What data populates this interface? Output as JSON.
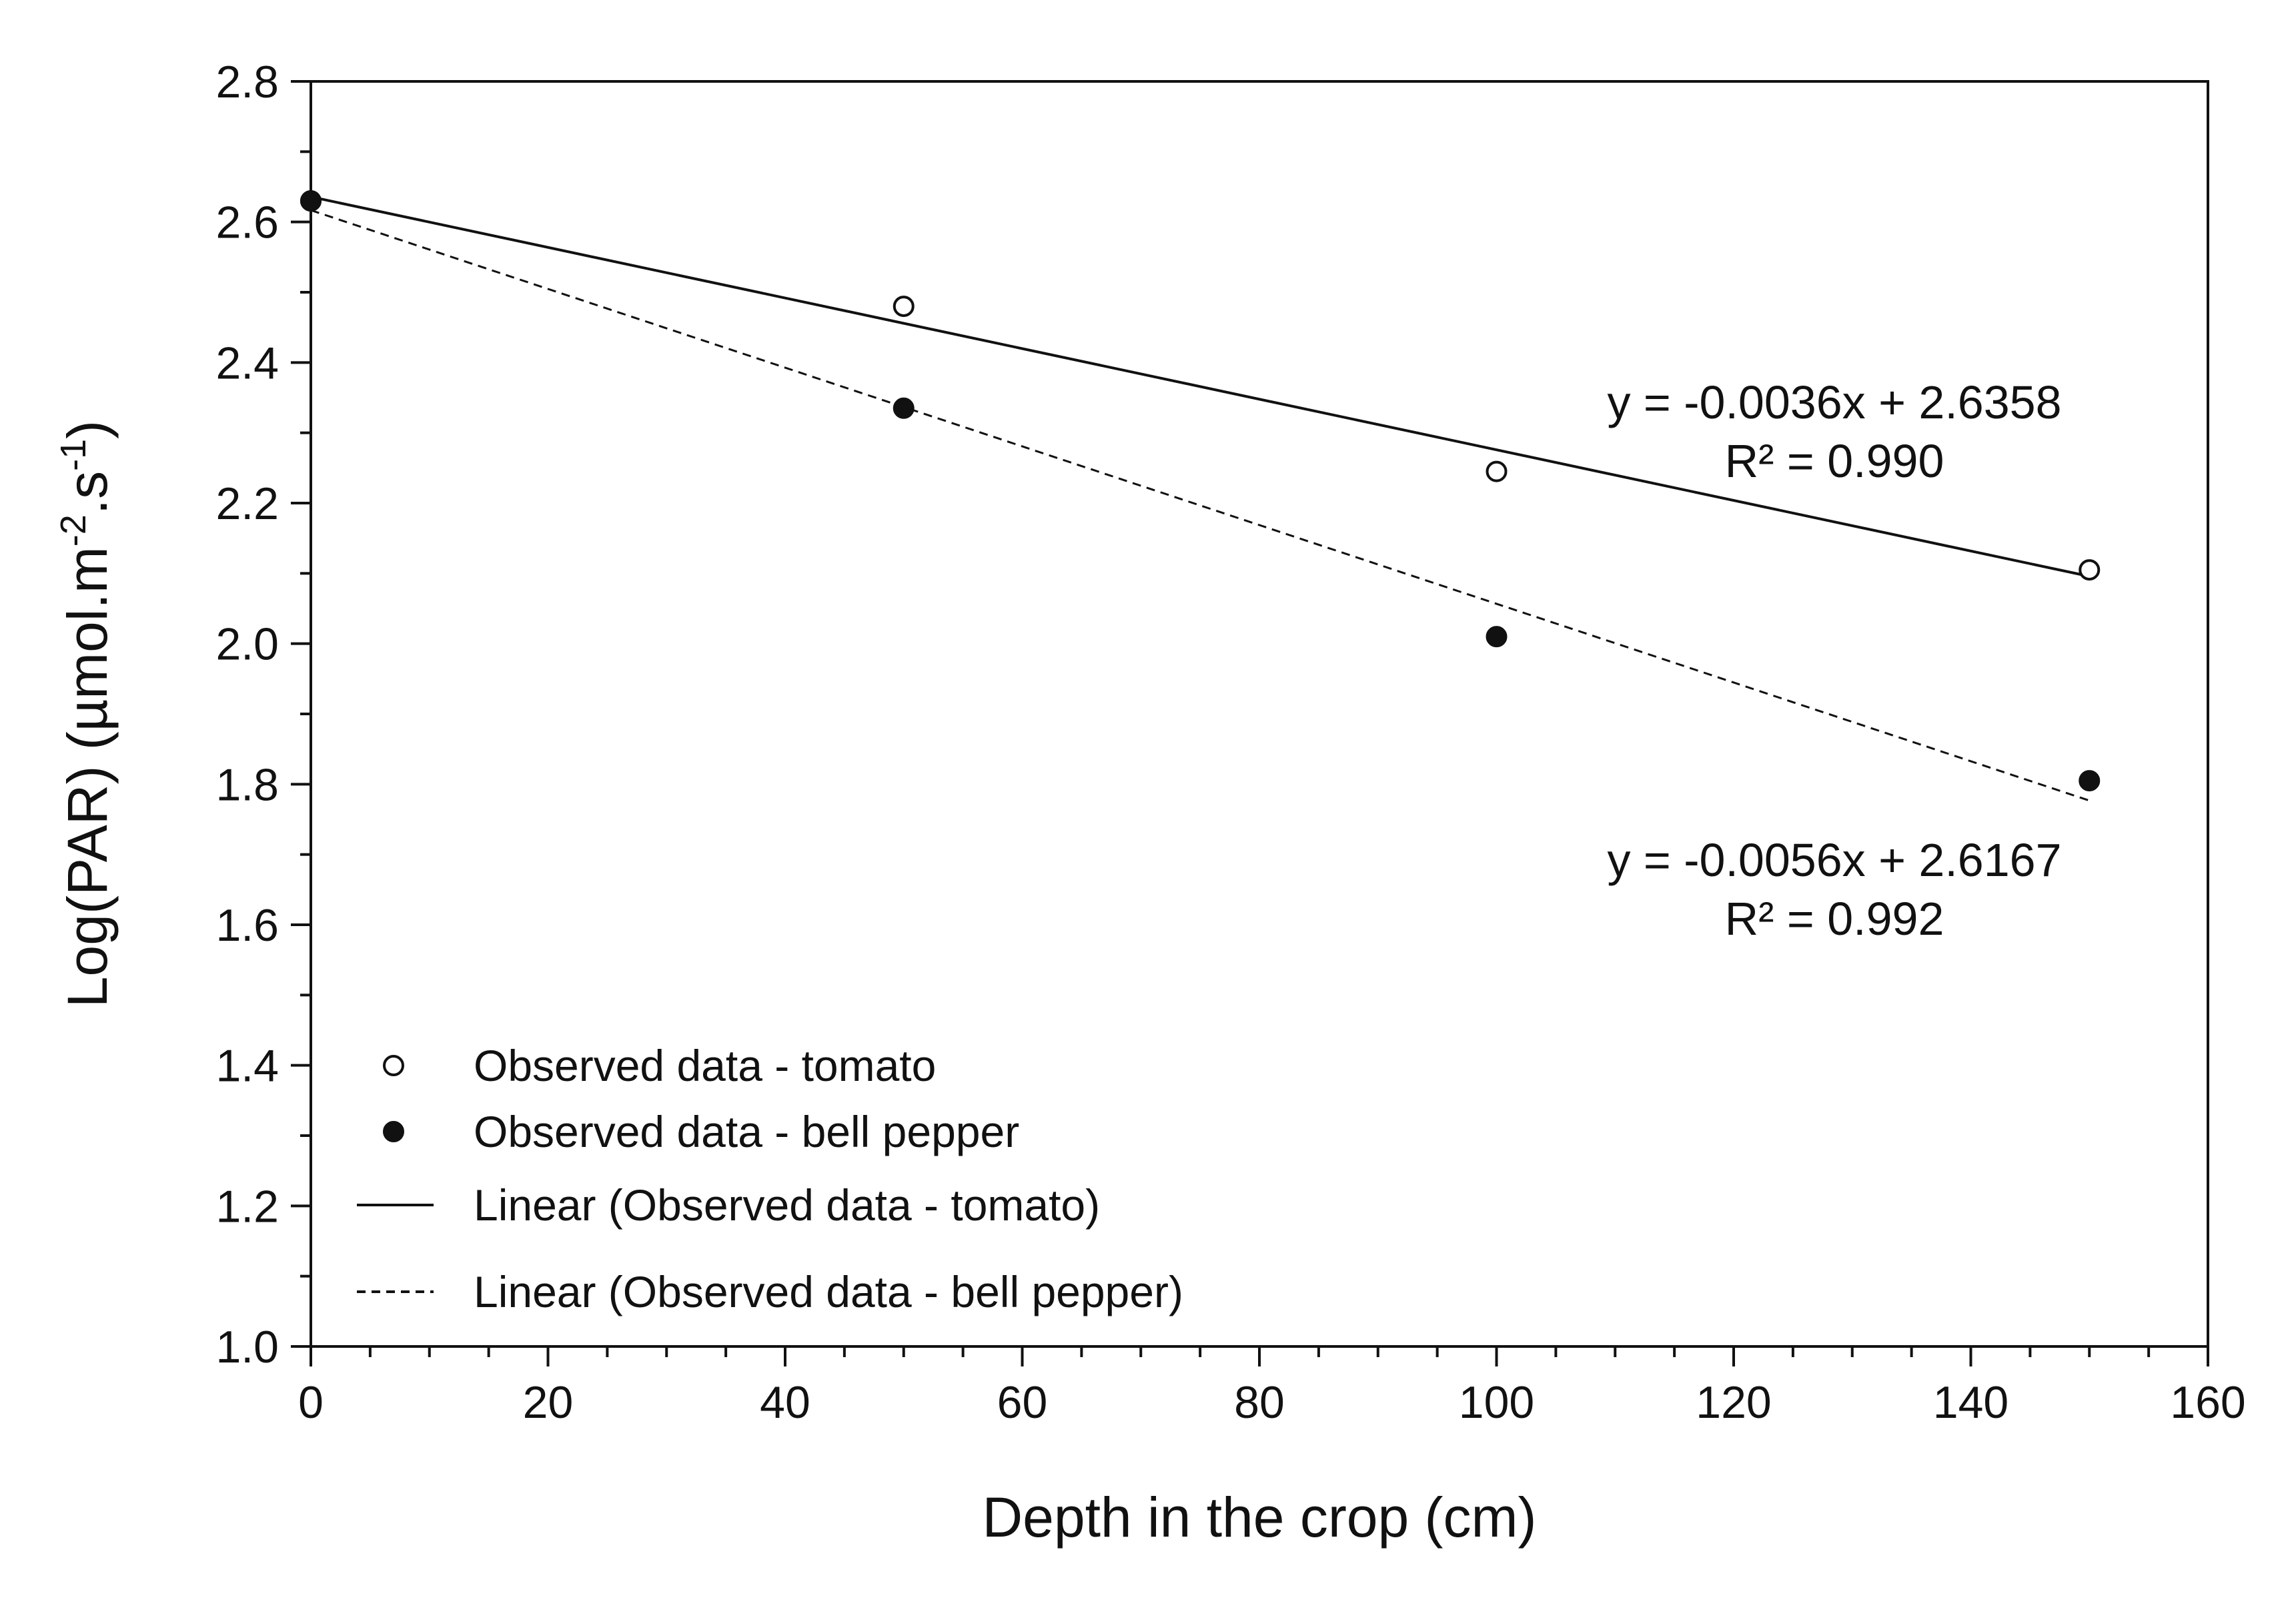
{
  "chart_data": {
    "type": "scatter",
    "title": "",
    "xlabel": "Depth in the crop (cm)",
    "ylabel": {
      "main": "Log(PAR) (µmol.m",
      "exp1": "-2",
      "mid": ".s",
      "exp2": "-1",
      "close": ")"
    },
    "xlim": [
      0,
      160
    ],
    "ylim": [
      1.0,
      2.8
    ],
    "xticks": [
      "0",
      "20",
      "40",
      "60",
      "80",
      "100",
      "120",
      "140",
      "160"
    ],
    "yticks": [
      "1.0",
      "1.2",
      "1.4",
      "1.6",
      "1.8",
      "2.0",
      "2.2",
      "2.4",
      "2.6",
      "2.8"
    ],
    "grid": false,
    "legend_position": "bottom-left",
    "series": [
      {
        "name": "Observed data - tomato",
        "kind": "points",
        "marker": "open-circle",
        "x": [
          0,
          50,
          100,
          150
        ],
        "y": [
          2.63,
          2.48,
          2.245,
          2.105
        ]
      },
      {
        "name": "Observed data - bell pepper",
        "kind": "points",
        "marker": "filled-circle",
        "x": [
          0,
          50,
          100,
          150
        ],
        "y": [
          2.63,
          2.335,
          2.01,
          1.805
        ]
      },
      {
        "name": "Linear (Observed data - tomato)",
        "kind": "line",
        "style": "solid",
        "slope": -0.0036,
        "intercept": 2.6358,
        "x_range": [
          0,
          150
        ]
      },
      {
        "name": "Linear (Observed data - bell pepper)",
        "kind": "line",
        "style": "dashed",
        "slope": -0.0056,
        "intercept": 2.6167,
        "x_range": [
          0,
          150
        ]
      }
    ],
    "annotations": [
      {
        "equation": "y = -0.0036x + 2.6358",
        "r2": "R² = 0.990",
        "position": "right, above tomato line"
      },
      {
        "equation": "y = -0.0056x + 2.6167",
        "r2": "R² = 0.992",
        "position": "right, below bell pepper line"
      }
    ]
  }
}
